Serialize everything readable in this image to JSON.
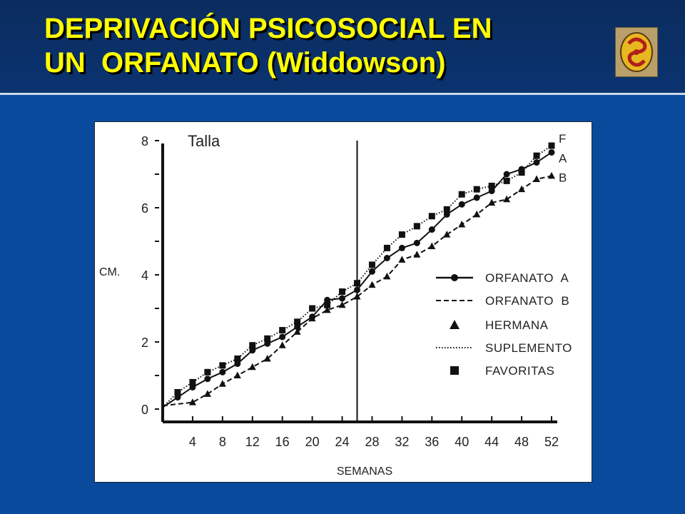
{
  "slide": {
    "title_line1": "DEPRIVACIÓN PSICOSOCIAL EN",
    "title_line2": "UN  ORFANATO (Widdowson)",
    "logo_icon": "institution-logo-icon",
    "colors": {
      "background": "#0a4a9c",
      "header": "#0b2c5e",
      "title": "#ffff00"
    }
  },
  "chart_data": {
    "type": "line",
    "title": "Talla",
    "ylabel": "CM.",
    "xlabel": "SEMANAS",
    "xlim": [
      0,
      52
    ],
    "ylim": [
      0,
      8
    ],
    "x_ticks": [
      "4",
      "8",
      "12",
      "16",
      "20",
      "24",
      "28",
      "32",
      "36",
      "40",
      "44",
      "48",
      "52"
    ],
    "y_ticks": [
      "0",
      "2",
      "4",
      "6",
      "8"
    ],
    "divider_x": 26,
    "series": [
      {
        "name": "ORFANATO  A",
        "end_label": "A",
        "marker": "circle",
        "line": "solid",
        "x": [
          0,
          2,
          4,
          6,
          8,
          10,
          12,
          14,
          16,
          18,
          20,
          22,
          24,
          26,
          28,
          30,
          32,
          34,
          36,
          38,
          40,
          42,
          44,
          46,
          48,
          50,
          52
        ],
        "y": [
          0.05,
          0.35,
          0.65,
          0.9,
          1.1,
          1.35,
          1.75,
          1.95,
          2.15,
          2.45,
          2.75,
          3.25,
          3.3,
          3.55,
          4.1,
          4.5,
          4.8,
          4.95,
          5.35,
          5.8,
          6.1,
          6.3,
          6.5,
          7.0,
          7.15,
          7.35,
          7.65
        ]
      },
      {
        "name": "ORFANATO  B",
        "end_label": "B",
        "marker": "triangle",
        "line": "dashed",
        "x": [
          0,
          4,
          6,
          8,
          10,
          12,
          14,
          16,
          18,
          20,
          22,
          24,
          26,
          28,
          30,
          32,
          34,
          36,
          38,
          40,
          42,
          44,
          46,
          48,
          50,
          52
        ],
        "y": [
          0.1,
          0.2,
          0.45,
          0.75,
          1.0,
          1.25,
          1.5,
          1.9,
          2.3,
          2.7,
          2.95,
          3.1,
          3.35,
          3.7,
          3.95,
          4.45,
          4.6,
          4.85,
          5.2,
          5.5,
          5.8,
          6.15,
          6.25,
          6.55,
          6.85,
          6.95
        ]
      },
      {
        "name": "SUPLEMENTO",
        "end_label": "F",
        "marker": "square",
        "line": "dotted",
        "x": [
          0,
          2,
          4,
          6,
          8,
          10,
          12,
          14,
          16,
          18,
          20,
          22,
          24,
          26,
          28,
          30,
          32,
          34,
          36,
          38,
          40,
          42,
          44,
          46,
          48,
          50,
          52
        ],
        "y": [
          0.05,
          0.5,
          0.8,
          1.1,
          1.3,
          1.5,
          1.9,
          2.1,
          2.35,
          2.6,
          3.0,
          3.1,
          3.5,
          3.75,
          4.3,
          4.8,
          5.2,
          5.45,
          5.75,
          5.95,
          6.4,
          6.55,
          6.65,
          6.8,
          7.05,
          7.55,
          7.85
        ]
      }
    ],
    "legend": {
      "placement": "right-center",
      "entries": [
        {
          "label": "ORFANATO  A",
          "symbol": "solid-circle"
        },
        {
          "label": "ORFANATO  B",
          "symbol": "dashed"
        },
        {
          "label": "HERMANA",
          "symbol": "triangle"
        },
        {
          "label": "SUPLEMENTO",
          "symbol": "dotted"
        },
        {
          "label": "FAVORITAS",
          "symbol": "square"
        }
      ]
    }
  }
}
